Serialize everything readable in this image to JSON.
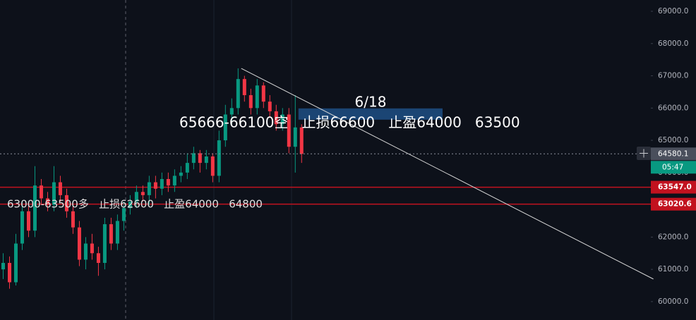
{
  "chart_data": {
    "type": "candlestick",
    "ylim": [
      59430,
      69350
    ],
    "xlim": [
      -0.5,
      102
    ],
    "yticks": [
      {
        "value": 60000,
        "label": "60000.0"
      },
      {
        "value": 61000,
        "label": "61000.0"
      },
      {
        "value": 62000,
        "label": "62000.0"
      },
      {
        "value": 63000,
        "label": "63000.0"
      },
      {
        "value": 64000,
        "label": "64000.0"
      },
      {
        "value": 65000,
        "label": "65000.0"
      },
      {
        "value": 66000,
        "label": "66000.0"
      },
      {
        "value": 67000,
        "label": "67000.0"
      },
      {
        "value": 68000,
        "label": "68000.0"
      },
      {
        "value": 69000,
        "label": "69000.0"
      }
    ],
    "up_color": "#089981",
    "down_color": "#f23645",
    "open": [
      61000,
      61200,
      60600,
      61800,
      62800,
      62200,
      63600,
      63200,
      63000,
      63700,
      63300,
      62800,
      62300,
      61300,
      61800,
      61500,
      61200,
      62400,
      61800,
      62500,
      62900,
      63100,
      63400,
      63300,
      63700,
      63500,
      63800,
      63600,
      63900,
      64000,
      64300,
      64600,
      64300,
      64500,
      63900,
      65000,
      65800,
      66000,
      66900,
      66400,
      66000,
      66700,
      66200,
      65900,
      65500,
      65800,
      64800,
      65400
    ],
    "high": [
      61500,
      61400,
      62100,
      63100,
      63000,
      64200,
      63800,
      63400,
      64200,
      63900,
      63500,
      63000,
      62500,
      62000,
      62100,
      61700,
      62600,
      62600,
      62700,
      63100,
      63300,
      63600,
      63600,
      63900,
      63900,
      64000,
      64000,
      64100,
      64200,
      64600,
      64800,
      64700,
      64700,
      64600,
      65300,
      66100,
      66300,
      67230,
      67000,
      66600,
      66900,
      66800,
      66400,
      66100,
      66000,
      66000,
      66400,
      65500
    ],
    "low": [
      60700,
      60400,
      60500,
      61600,
      62000,
      62000,
      63000,
      62800,
      62800,
      63100,
      62600,
      62100,
      61100,
      61000,
      61300,
      60800,
      61000,
      61600,
      61600,
      62200,
      62700,
      62900,
      63100,
      63000,
      63200,
      63300,
      63400,
      63400,
      63700,
      63800,
      64100,
      64000,
      64100,
      63700,
      63700,
      64800,
      65500,
      65800,
      66200,
      65800,
      65800,
      66000,
      65700,
      65300,
      65300,
      64600,
      64000,
      64300
    ],
    "close": [
      61200,
      60600,
      61800,
      62800,
      62200,
      63600,
      63200,
      63000,
      63700,
      63300,
      62800,
      62300,
      61300,
      61800,
      61500,
      61200,
      62400,
      61800,
      62500,
      62900,
      63100,
      63400,
      63300,
      63700,
      63500,
      63800,
      63600,
      63900,
      64000,
      64300,
      64600,
      64300,
      64500,
      63900,
      65000,
      65800,
      66000,
      66900,
      66400,
      66000,
      66700,
      66200,
      65900,
      65500,
      65800,
      64800,
      65400,
      64580.1
    ],
    "current_price": 64580.1,
    "countdown": "05:47",
    "levels": [
      {
        "value": 63547.0,
        "label": "63547.0"
      },
      {
        "value": 63020.6,
        "label": "63020.6"
      }
    ],
    "level_color": "#c2121f",
    "trendline": {
      "x": [
        37.5,
        102.4
      ],
      "y": [
        67230,
        60700
      ]
    },
    "zone": {
      "x": [
        46.5,
        69.2
      ],
      "y": [
        65640,
        65990
      ]
    },
    "annotations": [
      "6/18",
      "65666-66100空   止损66600   止盈64000   63500",
      "63000-63500多   止损62600   止盈64000   64800"
    ]
  }
}
